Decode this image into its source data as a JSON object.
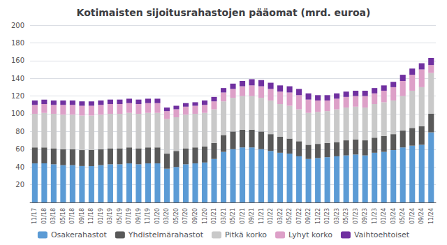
{
  "chart_data": {
    "type": "bar",
    "title": "Kotimaisten sijoitusrahastojen pääomat (mrd. euroa)",
    "stacked": true,
    "grid": true,
    "legend": "bottom",
    "categories": [
      "11/17",
      "01/18",
      "03/18",
      "05/18",
      "07/18",
      "09/18",
      "11/18",
      "01/19",
      "03/19",
      "05/19",
      "07/19",
      "09/19",
      "11/19",
      "01/20",
      "03/20",
      "05/20",
      "07/20",
      "09/20",
      "11/20",
      "01/21",
      "03/21",
      "05/21",
      "07/21",
      "09/21",
      "11/21",
      "01/22",
      "03/22",
      "05/22",
      "07/22",
      "09/22",
      "11/22",
      "01/23",
      "03/23",
      "05/23",
      "07/23",
      "09/23",
      "11/23",
      "01/24",
      "03/24",
      "05/24",
      "07/24",
      "09/24",
      "11/24"
    ],
    "series": [
      {
        "name": "Osakerahastot",
        "color": "#5B9BD5",
        "values": [
          44,
          44,
          43,
          42,
          42,
          41,
          41,
          42,
          43,
          43,
          44,
          43,
          44,
          44,
          38,
          40,
          43,
          44,
          45,
          49,
          57,
          60,
          62,
          62,
          60,
          58,
          56,
          55,
          52,
          49,
          50,
          51,
          52,
          53,
          54,
          53,
          56,
          57,
          59,
          62,
          64,
          65,
          79
        ]
      },
      {
        "name": "Yhdistelmärahastot",
        "color": "#595959",
        "values": [
          18,
          18,
          18,
          18,
          18,
          18,
          18,
          18,
          18,
          18,
          18,
          18,
          18,
          18,
          17,
          18,
          18,
          18,
          18,
          18,
          19,
          20,
          20,
          20,
          20,
          19,
          18,
          17,
          17,
          16,
          16,
          16,
          16,
          17,
          17,
          17,
          17,
          18,
          18,
          19,
          20,
          21,
          21
        ]
      },
      {
        "name": "Pitkä korko",
        "color": "#C9C9C9",
        "values": [
          38,
          39,
          39,
          39,
          39,
          39,
          39,
          39,
          39,
          39,
          39,
          39,
          39,
          39,
          39,
          38,
          38,
          38,
          38,
          38,
          38,
          38,
          38,
          38,
          38,
          38,
          37,
          37,
          36,
          36,
          36,
          36,
          37,
          37,
          37,
          37,
          38,
          38,
          38,
          39,
          42,
          44,
          46
        ]
      },
      {
        "name": "Lyhyt korko",
        "color": "#DDA0C8",
        "values": [
          10,
          10,
          10,
          11,
          11,
          11,
          11,
          11,
          11,
          11,
          11,
          11,
          11,
          11,
          9,
          9,
          9,
          9,
          9,
          9,
          10,
          10,
          11,
          12,
          13,
          13,
          14,
          15,
          16,
          15,
          13,
          12,
          12,
          12,
          12,
          13,
          12,
          13,
          15,
          17,
          18,
          20,
          9
        ]
      },
      {
        "name": "Vaihtoehtoiset",
        "color": "#7030A0",
        "values": [
          5,
          5,
          5,
          5,
          5,
          5,
          5,
          5,
          5,
          5,
          5,
          5,
          5,
          5,
          4,
          4,
          4,
          4,
          5,
          5,
          5,
          6,
          6,
          7,
          7,
          7,
          7,
          7,
          7,
          7,
          6,
          6,
          6,
          6,
          6,
          6,
          6,
          6,
          6,
          7,
          7,
          7,
          8
        ]
      }
    ],
    "ylim": [
      0,
      200
    ],
    "yticks": [
      {
        "value": 0,
        "label": ""
      },
      20,
      40,
      60,
      80,
      100,
      120,
      140,
      160,
      180,
      200
    ]
  }
}
